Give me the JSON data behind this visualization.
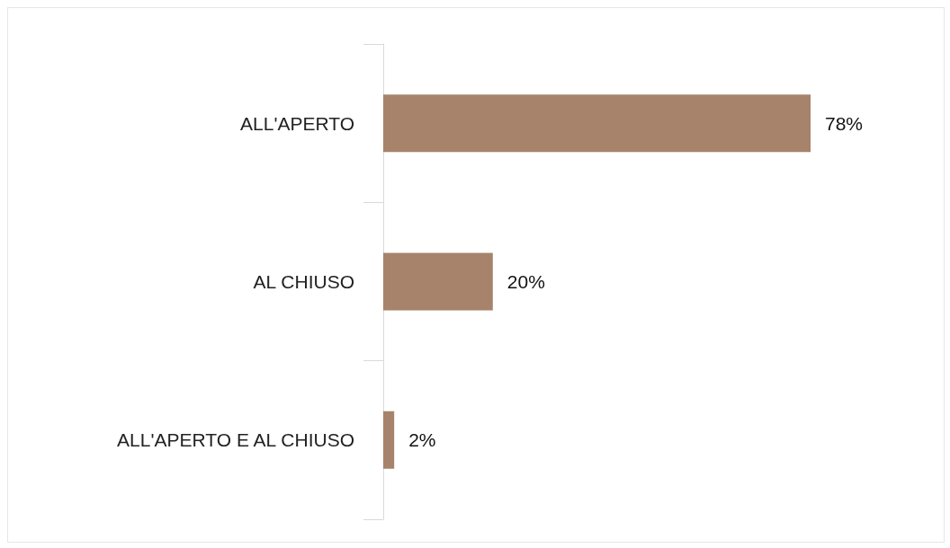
{
  "chart_data": {
    "type": "bar",
    "orientation": "horizontal",
    "categories": [
      "ALL'APERTO",
      "AL CHIUSO",
      "ALL'APERTO E AL CHIUSO"
    ],
    "values": [
      78,
      20,
      2
    ],
    "value_labels": [
      "78%",
      "20%",
      "2%"
    ],
    "color": "#a6836a"
  }
}
